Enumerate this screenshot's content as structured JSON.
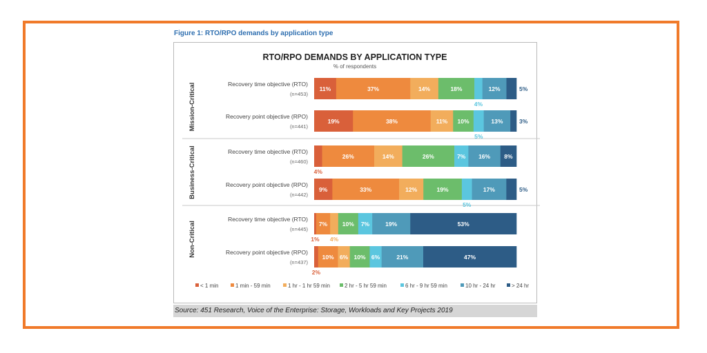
{
  "figure_label": "Figure 1: RTO/RPO demands by application type",
  "source": "Source: 451 Research, Voice of the Enterprise: Storage, Workloads and Key Projects 2019",
  "colors": {
    "frame": "#f07a2a",
    "segments": [
      "#d9603a",
      "#ee8a3e",
      "#f2ad5c",
      "#6cbd6b",
      "#5bc6df",
      "#4f9ab9",
      "#2d5c86"
    ]
  },
  "chart_data": {
    "type": "bar",
    "stacked": true,
    "orientation": "horizontal",
    "title": "RTO/RPO DEMANDS BY APPLICATION TYPE",
    "subtitle": "% of respondents",
    "xlim": [
      0,
      100
    ],
    "legend_position": "bottom",
    "series_names": [
      "< 1 min",
      "1 min - 59 min",
      "1 hr - 1 hr 59 min",
      "2 hr - 5 hr 59 min",
      "6 hr - 9 hr 59 min",
      "10 hr - 24 hr",
      "> 24 hr"
    ],
    "groups": [
      {
        "name": "Mission-Critical",
        "rows": [
          {
            "label": "Recovery time objective (RTO)",
            "n": "(n=453)",
            "values": [
              11,
              37,
              14,
              18,
              4,
              12,
              5
            ]
          },
          {
            "label": "Recovery point objective (RPO)",
            "n": "(n=441)",
            "values": [
              19,
              38,
              11,
              10,
              5,
              13,
              3
            ]
          }
        ]
      },
      {
        "name": "Business-Critical",
        "rows": [
          {
            "label": "Recovery time objective (RTO)",
            "n": "(n=460)",
            "values": [
              4,
              26,
              14,
              26,
              7,
              16,
              8
            ]
          },
          {
            "label": "Recovery point objective (RPO)",
            "n": "(n=442)",
            "values": [
              9,
              33,
              12,
              19,
              5,
              17,
              5
            ]
          }
        ]
      },
      {
        "name": "Non-Critical",
        "rows": [
          {
            "label": "Recovery time objective (RTO)",
            "n": "(n=445)",
            "values": [
              1,
              7,
              4,
              10,
              7,
              19,
              53
            ]
          },
          {
            "label": "Recovery point objective (RPO)",
            "n": "(n=437)",
            "values": [
              2,
              10,
              6,
              10,
              6,
              21,
              47
            ]
          }
        ]
      }
    ]
  }
}
